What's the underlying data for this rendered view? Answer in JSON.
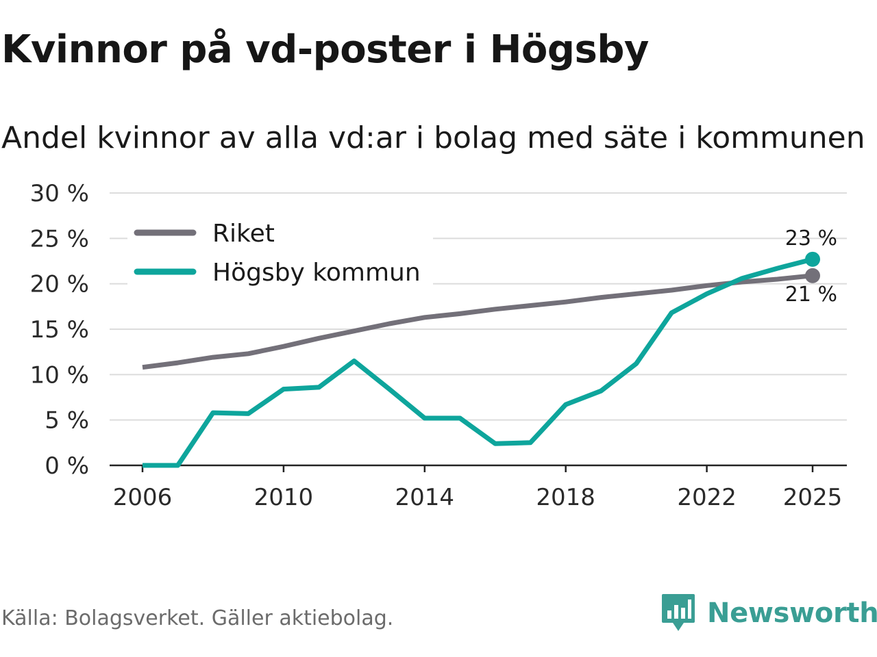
{
  "header": {
    "title": "Kvinnor på vd-poster i Högsby",
    "subtitle": "Andel kvinnor av alla vd:ar i bolag med säte i kommunen"
  },
  "footer": {
    "source": "Källa: Bolagsverket. Gäller aktiebolag.",
    "brand": "Newsworthy"
  },
  "colors": {
    "riket": "#737079",
    "hogsby": "#0ea59c",
    "grid": "#dcdcdc",
    "axis": "#222222",
    "brand": "#3a9e94"
  },
  "chart_data": {
    "type": "line",
    "title": "Andel kvinnor av alla vd:ar i bolag med säte i kommunen",
    "xlabel": "",
    "ylabel": "",
    "x": [
      2006,
      2007,
      2008,
      2009,
      2010,
      2011,
      2012,
      2013,
      2014,
      2015,
      2016,
      2017,
      2018,
      2019,
      2020,
      2021,
      2022,
      2023,
      2024,
      2025
    ],
    "xlim": [
      2006,
      2025
    ],
    "ylim": [
      0,
      30
    ],
    "y_ticks": [
      0,
      5,
      10,
      15,
      20,
      25,
      30
    ],
    "y_tick_labels": [
      "0 %",
      "5 %",
      "10 %",
      "15 %",
      "20 %",
      "25 %",
      "30 %"
    ],
    "x_ticks": [
      2006,
      2010,
      2014,
      2018,
      2022,
      2025
    ],
    "x_tick_labels": [
      "2006",
      "2010",
      "2014",
      "2018",
      "2022",
      "2025"
    ],
    "grid": true,
    "legend_position": "top-left",
    "series": [
      {
        "name": "Riket",
        "color": "#737079",
        "values": [
          10.8,
          11.3,
          11.9,
          12.3,
          13.1,
          14.0,
          14.8,
          15.6,
          16.3,
          16.7,
          17.2,
          17.6,
          18.0,
          18.5,
          18.9,
          19.3,
          19.8,
          20.2,
          20.5,
          20.9
        ],
        "end_label": "21 %"
      },
      {
        "name": "Högsby kommun",
        "color": "#0ea59c",
        "values": [
          0,
          0,
          5.8,
          5.7,
          8.4,
          8.6,
          11.5,
          8.4,
          5.2,
          5.2,
          2.4,
          2.5,
          6.7,
          8.2,
          11.2,
          16.8,
          18.9,
          20.6,
          21.7,
          22.7
        ],
        "end_label": "23 %"
      }
    ]
  }
}
